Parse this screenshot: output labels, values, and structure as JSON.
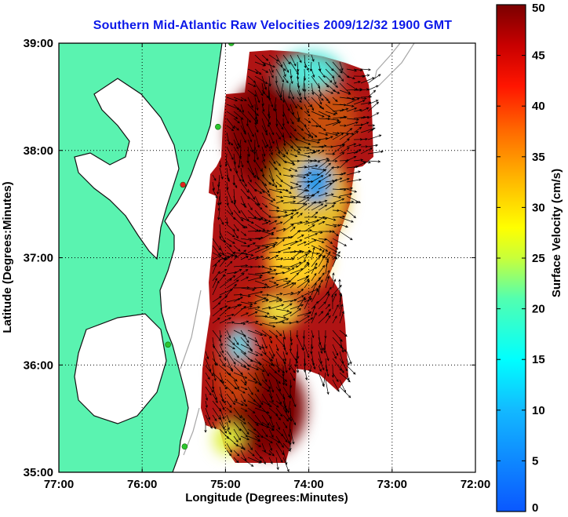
{
  "title": "Southern Mid-Atlantic Raw Velocities 2009/12/32 1900 GMT",
  "map": {
    "x_label": "Longitude (Degrees:Minutes)",
    "y_label": "Latitude (Degrees:Minutes)",
    "lon_range": [
      -77,
      -72
    ],
    "lat_range": [
      35,
      39
    ],
    "x_ticks": [
      {
        "value": -77,
        "label": "77:00"
      },
      {
        "value": -76,
        "label": "76:00"
      },
      {
        "value": -75,
        "label": "75:00"
      },
      {
        "value": -74,
        "label": "74:00"
      },
      {
        "value": -73,
        "label": "73:00"
      },
      {
        "value": -72,
        "label": "72:00"
      }
    ],
    "y_ticks": [
      {
        "value": 39,
        "label": "39:00"
      },
      {
        "value": 38,
        "label": "38:00"
      },
      {
        "value": 37,
        "label": "37:00"
      },
      {
        "value": 36,
        "label": "36:00"
      },
      {
        "value": 35,
        "label": "35:00"
      }
    ],
    "grid": "dotted",
    "land_color": "#5af3b0",
    "water_color": "#ffffff",
    "coast_color": "#111111",
    "isobath_color": "#a7a7a7",
    "stations": [
      {
        "lon": -74.93,
        "lat": 39.0,
        "color": "#2ec42e"
      },
      {
        "lon": -75.09,
        "lat": 38.22,
        "color": "#2ec42e"
      },
      {
        "lon": -75.51,
        "lat": 37.68,
        "color": "#e02020"
      },
      {
        "lon": -75.69,
        "lat": 36.19,
        "color": "#2ec42e"
      },
      {
        "lon": -75.49,
        "lat": 35.24,
        "color": "#2ec42e"
      }
    ]
  },
  "colorbar": {
    "label": "Surface Velocity (cm/s)",
    "min": 0,
    "max": 50,
    "ticks": [
      "0",
      "5",
      "10",
      "15",
      "20",
      "25",
      "30",
      "35",
      "40",
      "45",
      "50"
    ]
  }
}
